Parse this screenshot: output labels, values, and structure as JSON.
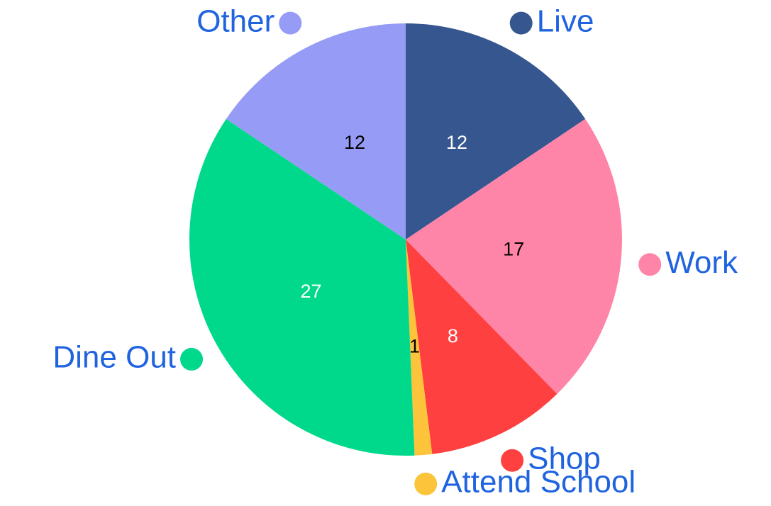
{
  "chart_data": {
    "type": "pie",
    "categories": [
      "Live",
      "Work",
      "Shop",
      "Attend School",
      "Dine Out",
      "Other"
    ],
    "values": [
      12,
      17,
      8,
      1,
      27,
      12
    ],
    "colors": [
      "#36568f",
      "#ff85a8",
      "#ff4040",
      "#fcc43a",
      "#00d98b",
      "#969cf5"
    ]
  }
}
